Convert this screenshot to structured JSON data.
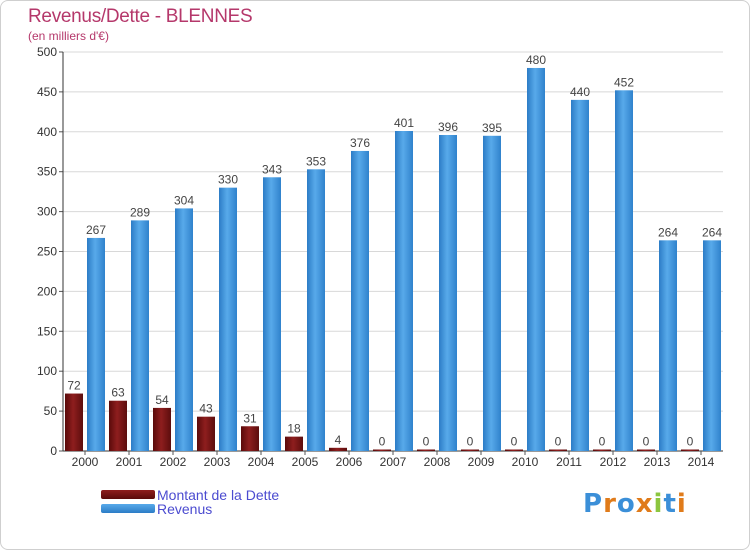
{
  "title": "Revenus/Dette - BLENNES",
  "subtitle": "(en milliers d'€)",
  "logo": "Proxiti",
  "colors": {
    "debt": "#7a1414",
    "revenue": "#3b8fd8",
    "title": "#b5386b",
    "legend_text": "#4b4bd0",
    "grid": "#d8d8d8"
  },
  "chart_data": {
    "type": "bar",
    "title": "Revenus/Dette - BLENNES",
    "subtitle": "(en milliers d'€)",
    "categories": [
      "2000",
      "2001",
      "2002",
      "2003",
      "2004",
      "2005",
      "2006",
      "2007",
      "2008",
      "2009",
      "2010",
      "2011",
      "2012",
      "2013",
      "2014"
    ],
    "series": [
      {
        "name": "Montant de la Dette",
        "color": "#7a1414",
        "values": [
          72,
          63,
          54,
          43,
          31,
          18,
          4,
          0,
          0,
          0,
          0,
          0,
          0,
          0,
          0
        ]
      },
      {
        "name": "Revenus",
        "color": "#3b8fd8",
        "values": [
          267,
          289,
          304,
          330,
          343,
          353,
          376,
          401,
          396,
          395,
          480,
          440,
          452,
          264,
          264
        ]
      }
    ],
    "ylim": [
      0,
      500
    ],
    "yticks": [
      0,
      50,
      100,
      150,
      200,
      250,
      300,
      350,
      400,
      450,
      500
    ],
    "grid": true,
    "legend": "bottom-left"
  }
}
